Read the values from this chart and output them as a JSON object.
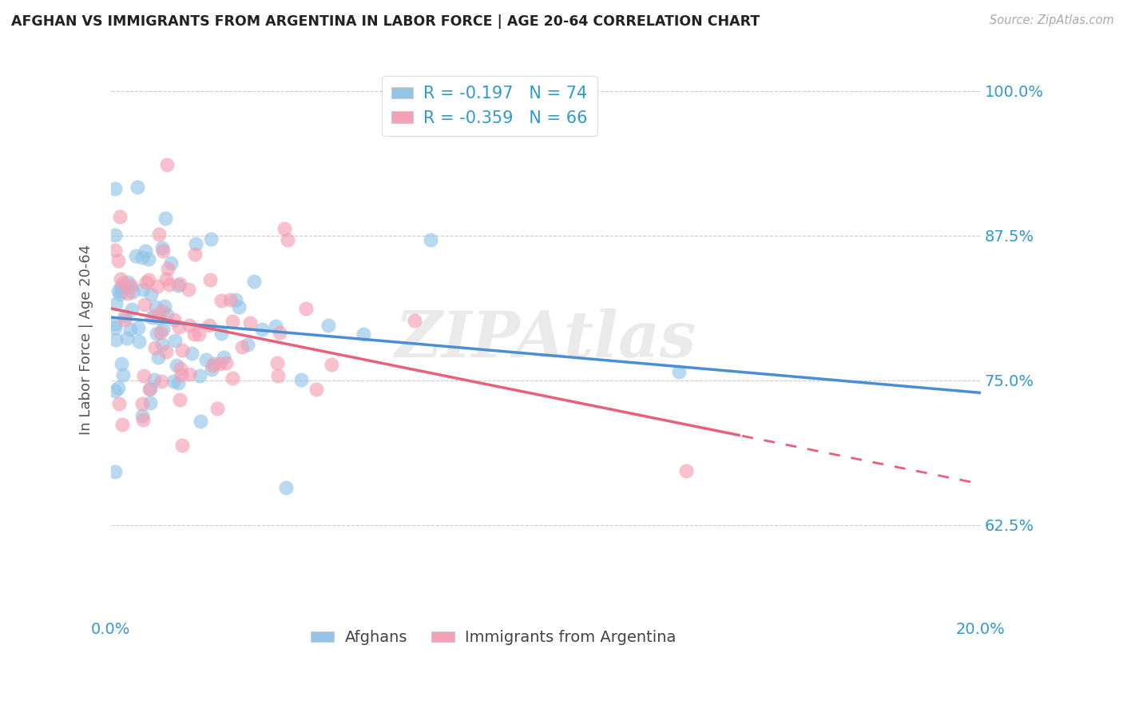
{
  "title": "AFGHAN VS IMMIGRANTS FROM ARGENTINA IN LABOR FORCE | AGE 20-64 CORRELATION CHART",
  "source": "Source: ZipAtlas.com",
  "ylabel": "In Labor Force | Age 20-64",
  "R1": -0.197,
  "N1": 74,
  "R2": -0.359,
  "N2": 66,
  "color_blue": "#92C5E8",
  "color_pink": "#F4A0B5",
  "color_blue_line": "#4A8FD4",
  "color_pink_line": "#E8607A",
  "color_cyan": "#3399CC",
  "xlim": [
    0.0,
    0.2
  ],
  "ylim": [
    0.545,
    1.025
  ],
  "yticks": [
    0.625,
    0.75,
    0.875,
    1.0
  ],
  "ytick_labels": [
    "62.5%",
    "75.0%",
    "87.5%",
    "100.0%"
  ],
  "xticks": [
    0.0,
    0.04,
    0.08,
    0.12,
    0.16,
    0.2
  ],
  "xtick_labels": [
    "0.0%",
    "",
    "",
    "",
    "",
    "20.0%"
  ],
  "legend_label1": "Afghans",
  "legend_label2": "Immigrants from Argentina",
  "watermark": "ZIPAtlas",
  "blue_intercept": 0.815,
  "blue_slope": -0.35,
  "pink_intercept": 0.828,
  "pink_slope": -0.78
}
